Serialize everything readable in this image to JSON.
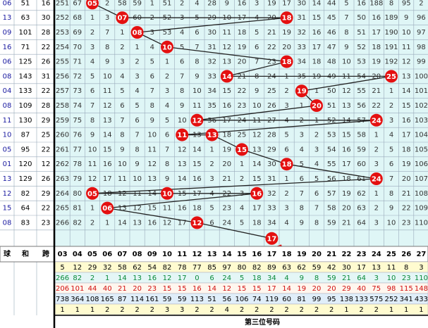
{
  "left_header": [
    "球",
    "和",
    "跨"
  ],
  "rows": [
    {
      "left": [
        "06",
        "51",
        "16"
      ],
      "cells": [
        "251",
        "67",
        "05",
        "2",
        "58",
        "59",
        "1",
        "51",
        "2",
        "4",
        "28",
        "9",
        "16",
        "3",
        "19",
        "17",
        "30",
        "14",
        "44",
        "5",
        "16",
        "188",
        "8",
        "95",
        "2"
      ]
    },
    {
      "left": [
        "13",
        "63",
        "30"
      ],
      "cells": [
        "252",
        "68",
        "1",
        "3",
        "07",
        "60",
        "2",
        "52",
        "3",
        "5",
        "29",
        "10",
        "17",
        "4",
        "20",
        "18",
        "31",
        "15",
        "45",
        "7",
        "50",
        "16",
        "189",
        "9",
        "96"
      ]
    },
    {
      "left": [
        "09",
        "101",
        "28"
      ],
      "cells": [
        "253",
        "69",
        "2",
        "7",
        "1",
        "08",
        "3",
        "53",
        "4",
        "6",
        "30",
        "11",
        "18",
        "5",
        "21",
        "19",
        "32",
        "16",
        "46",
        "8",
        "51",
        "17",
        "190",
        "10",
        "97"
      ]
    },
    {
      "left": [
        "16",
        "71",
        "22"
      ],
      "cells": [
        "254",
        "70",
        "3",
        "8",
        "2",
        "1",
        "4",
        "10",
        "5",
        "7",
        "31",
        "12",
        "19",
        "6",
        "22",
        "20",
        "33",
        "17",
        "47",
        "9",
        "52",
        "18",
        "191",
        "11",
        "98"
      ]
    },
    {
      "left": [
        "06",
        "125",
        "26"
      ],
      "cells": [
        "255",
        "71",
        "4",
        "9",
        "3",
        "2",
        "5",
        "1",
        "6",
        "8",
        "32",
        "13",
        "20",
        "7",
        "23",
        "18",
        "34",
        "18",
        "48",
        "10",
        "53",
        "19",
        "192",
        "12",
        "99"
      ]
    },
    {
      "left": [
        "08",
        "143",
        "31"
      ],
      "cells": [
        "256",
        "72",
        "5",
        "10",
        "4",
        "3",
        "6",
        "2",
        "7",
        "9",
        "33",
        "14",
        "21",
        "8",
        "24",
        "1",
        "35",
        "19",
        "49",
        "11",
        "54",
        "20",
        "25",
        "13",
        "100"
      ]
    },
    {
      "left": [
        "04",
        "133",
        "22"
      ],
      "cells": [
        "257",
        "73",
        "6",
        "11",
        "5",
        "4",
        "7",
        "3",
        "8",
        "10",
        "34",
        "15",
        "22",
        "9",
        "25",
        "2",
        "19",
        "1",
        "50",
        "12",
        "55",
        "21",
        "1",
        "14",
        "101"
      ]
    },
    {
      "left": [
        "08",
        "109",
        "28"
      ],
      "cells": [
        "258",
        "74",
        "7",
        "12",
        "6",
        "5",
        "8",
        "4",
        "9",
        "11",
        "35",
        "16",
        "23",
        "10",
        "26",
        "3",
        "1",
        "20",
        "51",
        "13",
        "56",
        "22",
        "2",
        "15",
        "102"
      ]
    },
    {
      "left": [
        "11",
        "130",
        "29"
      ],
      "cells": [
        "259",
        "75",
        "8",
        "13",
        "7",
        "6",
        "9",
        "5",
        "10",
        "12",
        "36",
        "17",
        "24",
        "11",
        "27",
        "4",
        "2",
        "1",
        "52",
        "14",
        "57",
        "24",
        "3",
        "16",
        "103"
      ]
    },
    {
      "left": [
        "10",
        "87",
        "25"
      ],
      "cells": [
        "260",
        "76",
        "9",
        "14",
        "8",
        "7",
        "10",
        "6",
        "11",
        "13",
        "13",
        "18",
        "25",
        "12",
        "28",
        "5",
        "3",
        "2",
        "53",
        "15",
        "58",
        "1",
        "4",
        "17",
        "104"
      ]
    },
    {
      "left": [
        "05",
        "95",
        "22"
      ],
      "cells": [
        "261",
        "77",
        "10",
        "15",
        "9",
        "8",
        "11",
        "7",
        "12",
        "14",
        "1",
        "19",
        "15",
        "13",
        "29",
        "6",
        "4",
        "3",
        "54",
        "16",
        "59",
        "2",
        "5",
        "18",
        "105"
      ]
    },
    {
      "left": [
        "01",
        "120",
        "12"
      ],
      "cells": [
        "262",
        "78",
        "11",
        "16",
        "10",
        "9",
        "12",
        "8",
        "13",
        "15",
        "2",
        "20",
        "1",
        "14",
        "30",
        "18",
        "5",
        "4",
        "55",
        "17",
        "60",
        "3",
        "6",
        "19",
        "106"
      ]
    },
    {
      "left": [
        "13",
        "129",
        "26"
      ],
      "cells": [
        "263",
        "79",
        "12",
        "17",
        "11",
        "10",
        "13",
        "9",
        "14",
        "16",
        "3",
        "21",
        "2",
        "15",
        "31",
        "1",
        "6",
        "5",
        "56",
        "18",
        "61",
        "24",
        "7",
        "20",
        "107"
      ]
    },
    {
      "left": [
        "12",
        "82",
        "29"
      ],
      "cells": [
        "264",
        "80",
        "05",
        "18",
        "12",
        "11",
        "14",
        "10",
        "15",
        "17",
        "4",
        "22",
        "3",
        "16",
        "32",
        "2",
        "7",
        "6",
        "57",
        "19",
        "62",
        "1",
        "8",
        "21",
        "108"
      ]
    },
    {
      "left": [
        "15",
        "64",
        "22"
      ],
      "cells": [
        "265",
        "81",
        "1",
        "06",
        "13",
        "12",
        "15",
        "11",
        "16",
        "18",
        "5",
        "23",
        "4",
        "17",
        "33",
        "3",
        "8",
        "7",
        "58",
        "20",
        "63",
        "2",
        "9",
        "22",
        "109"
      ]
    },
    {
      "left": [
        "08",
        "83",
        "23"
      ],
      "cells": [
        "266",
        "82",
        "2",
        "1",
        "14",
        "13",
        "16",
        "12",
        "17",
        "12",
        "6",
        "24",
        "5",
        "18",
        "34",
        "4",
        "9",
        "8",
        "59",
        "21",
        "64",
        "3",
        "10",
        "23",
        "110"
      ]
    }
  ],
  "pending_pick": "17",
  "column_header": [
    "03",
    "04",
    "05",
    "06",
    "07",
    "08",
    "09",
    "10",
    "11",
    "12",
    "13",
    "14",
    "15",
    "16",
    "17",
    "18",
    "19",
    "20",
    "21",
    "22",
    "23",
    "24",
    "25",
    "26",
    "27"
  ],
  "stats": [
    [
      "5",
      "12",
      "29",
      "32",
      "58",
      "62",
      "54",
      "82",
      "78",
      "77",
      "85",
      "97",
      "80",
      "82",
      "89",
      "63",
      "62",
      "59",
      "42",
      "30",
      "17",
      "13",
      "11",
      "8",
      "3"
    ],
    [
      "266",
      "82",
      "2",
      "1",
      "14",
      "13",
      "16",
      "12",
      "17",
      "0",
      "6",
      "24",
      "5",
      "18",
      "34",
      "4",
      "9",
      "8",
      "59",
      "21",
      "64",
      "3",
      "10",
      "23",
      "110"
    ],
    [
      "206",
      "101",
      "44",
      "40",
      "21",
      "20",
      "23",
      "15",
      "15",
      "16",
      "14",
      "12",
      "15",
      "15",
      "17",
      "14",
      "19",
      "20",
      "20",
      "29",
      "40",
      "75",
      "98",
      "115",
      "148"
    ],
    [
      "738",
      "364",
      "108",
      "165",
      "87",
      "114",
      "161",
      "59",
      "59",
      "113",
      "51",
      "56",
      "106",
      "74",
      "119",
      "60",
      "81",
      "99",
      "95",
      "138",
      "133",
      "575",
      "252",
      "341",
      "433"
    ],
    [
      "1",
      "1",
      "1",
      "2",
      "2",
      "2",
      "2",
      "3",
      "3",
      "2",
      "2",
      "4",
      "2",
      "2",
      "2",
      "2",
      "2",
      "2",
      "2",
      "1",
      "2",
      "2",
      "1",
      "1",
      "1"
    ]
  ],
  "footer": "第三位号码"
}
